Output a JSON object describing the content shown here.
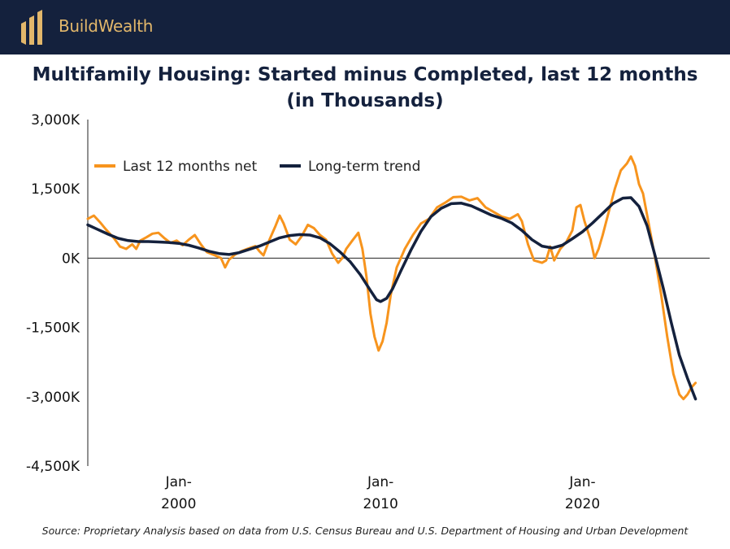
{
  "header": {
    "brand": "BuildWealth",
    "colors": {
      "bar": "#14213d",
      "gold": "#e2b76b"
    }
  },
  "title_line1": "Multifamily Housing: Started minus Completed, last 12 months",
  "title_line2": "(in Thousands)",
  "source": "Source: Proprietary Analysis based on data from U.S. Census Bureau and U.S. Department of Housing and Urban Development",
  "chart_data": {
    "type": "line",
    "title": "Multifamily Housing: Started minus Completed, last 12 months (in Thousands)",
    "xlabel": "",
    "ylabel": "",
    "xlim": [
      1995.5,
      2026.3
    ],
    "ylim": [
      -4500,
      3000
    ],
    "yticks": [
      3000,
      1500,
      0,
      -1500,
      -3000,
      -4500
    ],
    "ytick_labels": [
      "3,000K",
      "1,500K",
      "0K",
      "-1,500K",
      "-3,000K",
      "-4,500K"
    ],
    "xticks": [
      2000,
      2010,
      2020
    ],
    "xtick_labels": [
      [
        "Jan-",
        "2000"
      ],
      [
        "Jan-",
        "2010"
      ],
      [
        "Jan-",
        "2020"
      ]
    ],
    "grid": false,
    "legend_position": "top-left",
    "series": [
      {
        "name": "Last 12 months net",
        "color": "#f7941d",
        "points": [
          [
            1995.5,
            850
          ],
          [
            1995.8,
            920
          ],
          [
            1996.1,
            780
          ],
          [
            1996.4,
            620
          ],
          [
            1996.8,
            430
          ],
          [
            1997.1,
            250
          ],
          [
            1997.4,
            200
          ],
          [
            1997.7,
            300
          ],
          [
            1997.9,
            200
          ],
          [
            1998.1,
            380
          ],
          [
            1998.4,
            450
          ],
          [
            1998.7,
            530
          ],
          [
            1999.0,
            550
          ],
          [
            1999.3,
            430
          ],
          [
            1999.6,
            330
          ],
          [
            1999.9,
            380
          ],
          [
            2000.2,
            280
          ],
          [
            2000.5,
            400
          ],
          [
            2000.8,
            500
          ],
          [
            2001.1,
            300
          ],
          [
            2001.4,
            130
          ],
          [
            2001.8,
            60
          ],
          [
            2002.1,
            0
          ],
          [
            2002.3,
            -200
          ],
          [
            2002.5,
            -30
          ],
          [
            2002.8,
            80
          ],
          [
            2003.1,
            150
          ],
          [
            2003.4,
            200
          ],
          [
            2003.8,
            260
          ],
          [
            2004.0,
            150
          ],
          [
            2004.2,
            60
          ],
          [
            2004.5,
            400
          ],
          [
            2004.8,
            700
          ],
          [
            2005.0,
            920
          ],
          [
            2005.2,
            750
          ],
          [
            2005.5,
            400
          ],
          [
            2005.8,
            300
          ],
          [
            2006.1,
            480
          ],
          [
            2006.4,
            720
          ],
          [
            2006.7,
            650
          ],
          [
            2007.0,
            500
          ],
          [
            2007.3,
            400
          ],
          [
            2007.6,
            100
          ],
          [
            2007.9,
            -100
          ],
          [
            2008.1,
            0
          ],
          [
            2008.3,
            200
          ],
          [
            2008.6,
            380
          ],
          [
            2008.9,
            550
          ],
          [
            2009.1,
            200
          ],
          [
            2009.3,
            -400
          ],
          [
            2009.5,
            -1200
          ],
          [
            2009.7,
            -1700
          ],
          [
            2009.9,
            -2000
          ],
          [
            2010.1,
            -1800
          ],
          [
            2010.3,
            -1400
          ],
          [
            2010.5,
            -800
          ],
          [
            2010.8,
            -200
          ],
          [
            2011.2,
            200
          ],
          [
            2011.6,
            500
          ],
          [
            2012.0,
            750
          ],
          [
            2012.4,
            850
          ],
          [
            2012.8,
            1100
          ],
          [
            2013.2,
            1200
          ],
          [
            2013.6,
            1320
          ],
          [
            2014.0,
            1330
          ],
          [
            2014.4,
            1250
          ],
          [
            2014.8,
            1300
          ],
          [
            2015.2,
            1100
          ],
          [
            2015.6,
            1000
          ],
          [
            2016.0,
            900
          ],
          [
            2016.4,
            850
          ],
          [
            2016.8,
            950
          ],
          [
            2017.0,
            800
          ],
          [
            2017.3,
            300
          ],
          [
            2017.6,
            -50
          ],
          [
            2018.0,
            -100
          ],
          [
            2018.2,
            -50
          ],
          [
            2018.4,
            250
          ],
          [
            2018.6,
            -50
          ],
          [
            2018.9,
            200
          ],
          [
            2019.2,
            350
          ],
          [
            2019.5,
            600
          ],
          [
            2019.7,
            1100
          ],
          [
            2019.9,
            1150
          ],
          [
            2020.1,
            800
          ],
          [
            2020.4,
            400
          ],
          [
            2020.6,
            0
          ],
          [
            2020.8,
            200
          ],
          [
            2021.0,
            500
          ],
          [
            2021.3,
            1000
          ],
          [
            2021.6,
            1500
          ],
          [
            2021.9,
            1900
          ],
          [
            2022.2,
            2050
          ],
          [
            2022.4,
            2200
          ],
          [
            2022.6,
            2000
          ],
          [
            2022.8,
            1600
          ],
          [
            2023.0,
            1400
          ],
          [
            2023.3,
            700
          ],
          [
            2023.6,
            0
          ],
          [
            2023.9,
            -800
          ],
          [
            2024.2,
            -1700
          ],
          [
            2024.5,
            -2500
          ],
          [
            2024.8,
            -2950
          ],
          [
            2025.0,
            -3050
          ],
          [
            2025.2,
            -2950
          ],
          [
            2025.4,
            -2800
          ],
          [
            2025.6,
            -2700
          ]
        ]
      },
      {
        "name": "Long-term trend",
        "color": "#14213d",
        "points": [
          [
            1995.5,
            720
          ],
          [
            1996.0,
            620
          ],
          [
            1996.5,
            520
          ],
          [
            1997.0,
            430
          ],
          [
            1997.5,
            380
          ],
          [
            1998.0,
            360
          ],
          [
            1998.5,
            360
          ],
          [
            1999.0,
            350
          ],
          [
            1999.5,
            340
          ],
          [
            2000.0,
            320
          ],
          [
            2000.5,
            280
          ],
          [
            2001.0,
            220
          ],
          [
            2001.5,
            150
          ],
          [
            2002.0,
            100
          ],
          [
            2002.5,
            80
          ],
          [
            2003.0,
            120
          ],
          [
            2003.5,
            190
          ],
          [
            2004.0,
            260
          ],
          [
            2004.5,
            350
          ],
          [
            2005.0,
            440
          ],
          [
            2005.5,
            490
          ],
          [
            2006.0,
            510
          ],
          [
            2006.5,
            500
          ],
          [
            2007.0,
            440
          ],
          [
            2007.5,
            310
          ],
          [
            2008.0,
            130
          ],
          [
            2008.5,
            -80
          ],
          [
            2009.0,
            -360
          ],
          [
            2009.5,
            -700
          ],
          [
            2009.8,
            -900
          ],
          [
            2010.0,
            -940
          ],
          [
            2010.3,
            -870
          ],
          [
            2010.6,
            -660
          ],
          [
            2011.0,
            -280
          ],
          [
            2011.5,
            170
          ],
          [
            2012.0,
            580
          ],
          [
            2012.5,
            900
          ],
          [
            2013.0,
            1080
          ],
          [
            2013.5,
            1180
          ],
          [
            2014.0,
            1190
          ],
          [
            2014.5,
            1130
          ],
          [
            2015.0,
            1030
          ],
          [
            2015.5,
            930
          ],
          [
            2016.0,
            860
          ],
          [
            2016.5,
            760
          ],
          [
            2017.0,
            600
          ],
          [
            2017.5,
            400
          ],
          [
            2018.0,
            260
          ],
          [
            2018.5,
            220
          ],
          [
            2019.0,
            280
          ],
          [
            2019.5,
            420
          ],
          [
            2020.0,
            570
          ],
          [
            2020.5,
            760
          ],
          [
            2021.0,
            970
          ],
          [
            2021.5,
            1180
          ],
          [
            2022.0,
            1300
          ],
          [
            2022.4,
            1310
          ],
          [
            2022.8,
            1120
          ],
          [
            2023.2,
            700
          ],
          [
            2023.6,
            50
          ],
          [
            2024.0,
            -650
          ],
          [
            2024.4,
            -1400
          ],
          [
            2024.8,
            -2100
          ],
          [
            2025.2,
            -2600
          ],
          [
            2025.6,
            -3050
          ]
        ]
      }
    ]
  }
}
